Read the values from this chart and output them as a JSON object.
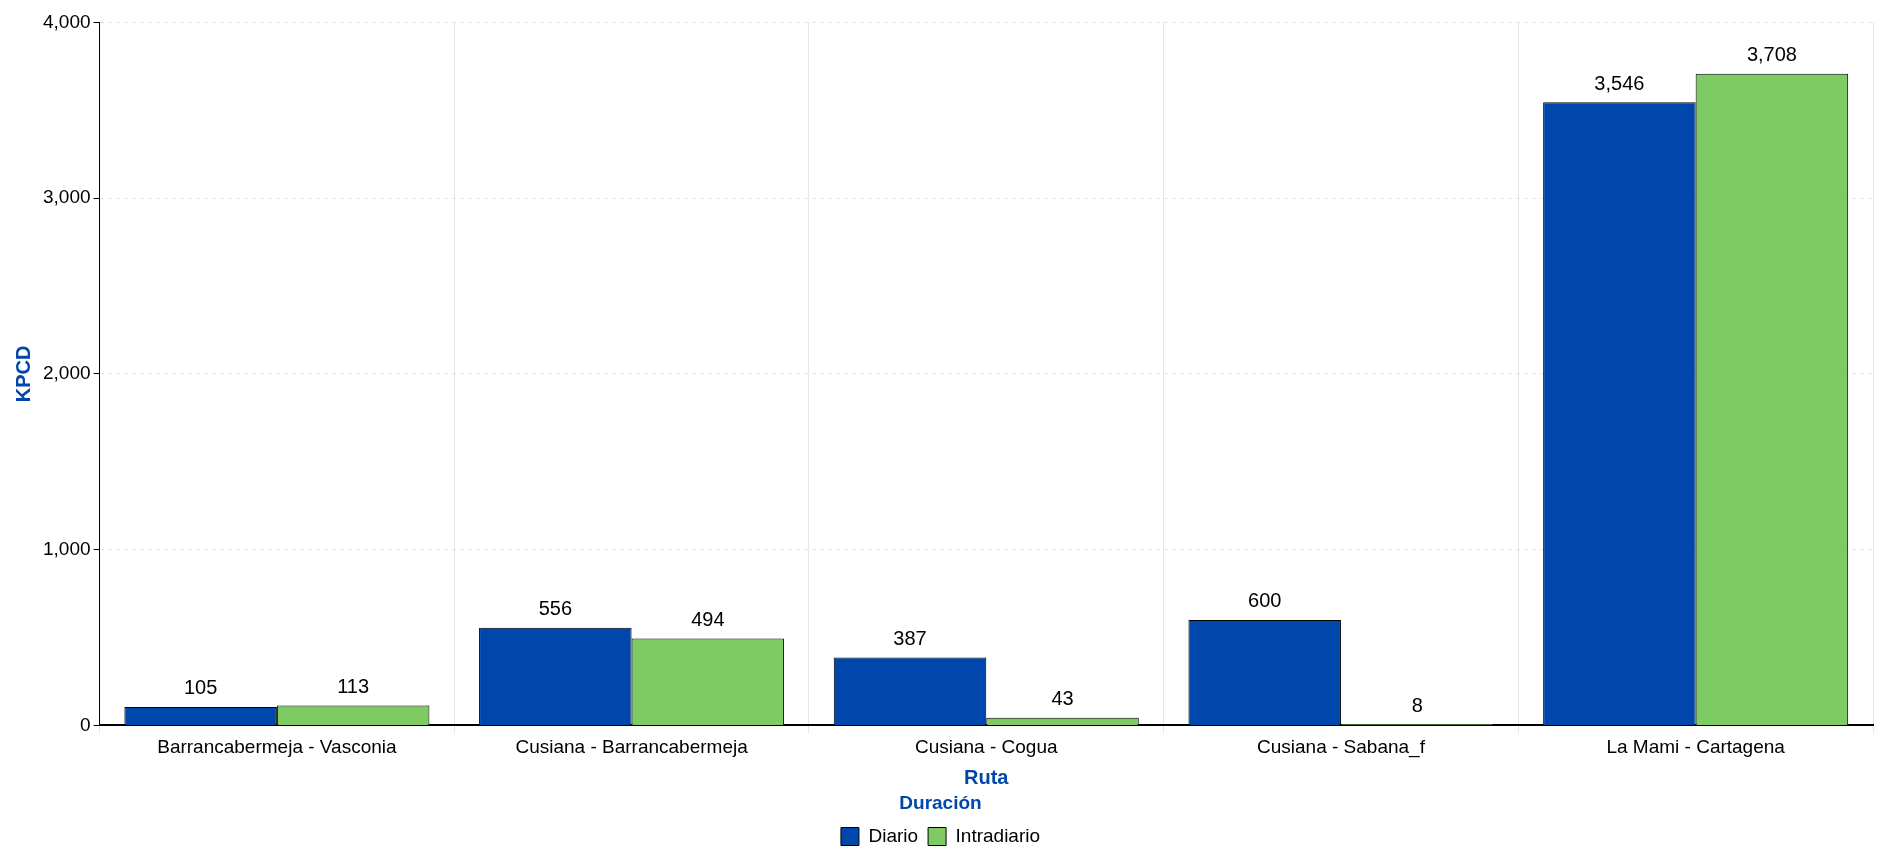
{
  "chart_data": {
    "type": "bar",
    "xlabel": "Ruta",
    "ylabel": "KPCD",
    "legend_title": "Duración",
    "categories": [
      "Barrancabermeja - Vasconia",
      "Cusiana - Barrancabermeja",
      "Cusiana - Cogua",
      "Cusiana - Sabana_f",
      "La Mami - Cartagena"
    ],
    "series": [
      {
        "name": "Diario",
        "color": "#0047ab",
        "values": [
          105,
          556,
          387,
          600,
          3546
        ],
        "value_labels": [
          "105",
          "556",
          "387",
          "600",
          "3,546"
        ]
      },
      {
        "name": "Intradiario",
        "color": "#7ecb63",
        "values": [
          113,
          494,
          43,
          8,
          3708
        ],
        "value_labels": [
          "113",
          "494",
          "43",
          "8",
          "3,708"
        ]
      }
    ],
    "ylim": [
      0,
      4000
    ],
    "yticks": [
      {
        "value": 0,
        "label": "0"
      },
      {
        "value": 1000,
        "label": "1,000"
      },
      {
        "value": 2000,
        "label": "2,000"
      },
      {
        "value": 3000,
        "label": "3,000"
      },
      {
        "value": 4000,
        "label": "4,000"
      }
    ],
    "grid": true,
    "legend": "bottom"
  }
}
